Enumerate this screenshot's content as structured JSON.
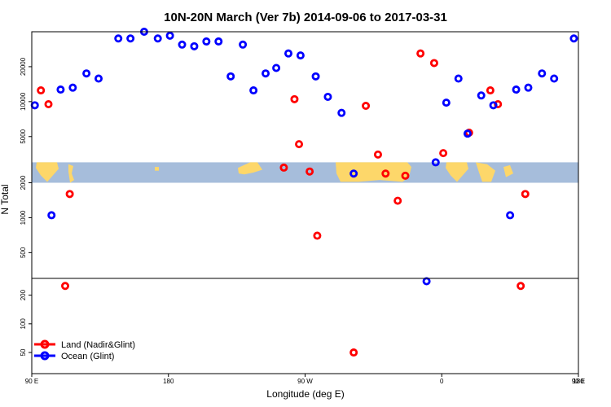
{
  "chart_data": {
    "type": "scatter",
    "title": "10N-20N March (Ver 7b)   2014-09-06 to 2017-03-31",
    "xlabel": "Longitude (deg E)",
    "ylabel": "N Total",
    "xlim": [
      90,
      450
    ],
    "x_ticks": [
      {
        "value": 90,
        "label": "90 E"
      },
      {
        "value": 180,
        "label": "180"
      },
      {
        "value": 270,
        "label": "90 W"
      },
      {
        "value": 360,
        "label": "0"
      },
      {
        "value": 450,
        "label": "90 E"
      },
      {
        "value": 540,
        "label": "180"
      }
    ],
    "y_scale": "piecewise-log",
    "y_segments": [
      {
        "range": [
          30,
          300
        ],
        "ticks": [
          50,
          100,
          200
        ]
      },
      {
        "range": [
          300,
          40000
        ],
        "ticks": [
          500,
          1000,
          2000,
          5000,
          10000,
          20000
        ]
      }
    ],
    "map_strip": {
      "lon_range": [
        90,
        450
      ],
      "n_range": [
        2000,
        3000
      ],
      "ocean_color": "#a6bddb",
      "land_color": "#fdd76a"
    },
    "legend": {
      "position": "bottom-left"
    },
    "series": [
      {
        "name": "Land (Nadir&Glint)",
        "color": "#ff0000",
        "points": [
          [
            96,
            12500
          ],
          [
            101,
            9500
          ],
          [
            112,
            250
          ],
          [
            115,
            1600
          ],
          [
            256,
            2700
          ],
          [
            263,
            10500
          ],
          [
            266,
            4300
          ],
          [
            273,
            2500
          ],
          [
            278,
            700
          ],
          [
            302,
            50
          ],
          [
            310,
            9200
          ],
          [
            318,
            3500
          ],
          [
            323,
            2400
          ],
          [
            331,
            1400
          ],
          [
            336,
            2300
          ],
          [
            346,
            26000
          ],
          [
            355,
            21500
          ],
          [
            361,
            3600
          ],
          [
            378,
            5400
          ],
          [
            392,
            12500
          ],
          [
            397,
            9500
          ],
          [
            412,
            250
          ],
          [
            415,
            1600
          ]
        ]
      },
      {
        "name": "Ocean (Glint)",
        "color": "#0000ff",
        "points": [
          [
            92,
            9300
          ],
          [
            103,
            1050
          ],
          [
            109,
            12700
          ],
          [
            117,
            13200
          ],
          [
            126,
            17500
          ],
          [
            134,
            15800
          ],
          [
            147,
            35000
          ],
          [
            155,
            35000
          ],
          [
            164,
            40000
          ],
          [
            173,
            35000
          ],
          [
            181,
            37000
          ],
          [
            189,
            31000
          ],
          [
            197,
            30000
          ],
          [
            205,
            33000
          ],
          [
            213,
            33000
          ],
          [
            221,
            16500
          ],
          [
            229,
            31000
          ],
          [
            236,
            12500
          ],
          [
            244,
            17500
          ],
          [
            251,
            19500
          ],
          [
            259,
            26000
          ],
          [
            267,
            25000
          ],
          [
            277,
            16500
          ],
          [
            285,
            11000
          ],
          [
            294,
            8000
          ],
          [
            302,
            2400
          ],
          [
            350,
            280
          ],
          [
            356,
            3000
          ],
          [
            363,
            9800
          ],
          [
            371,
            15800
          ],
          [
            377,
            5300
          ],
          [
            386,
            11300
          ],
          [
            394,
            9300
          ],
          [
            405,
            1050
          ],
          [
            409,
            12700
          ],
          [
            417,
            13200
          ],
          [
            426,
            17500
          ],
          [
            434,
            15800
          ],
          [
            447,
            35000
          ],
          [
            455,
            35000
          ],
          [
            464,
            40000
          ],
          [
            473,
            35000
          ],
          [
            481,
            37000
          ]
        ]
      }
    ]
  }
}
